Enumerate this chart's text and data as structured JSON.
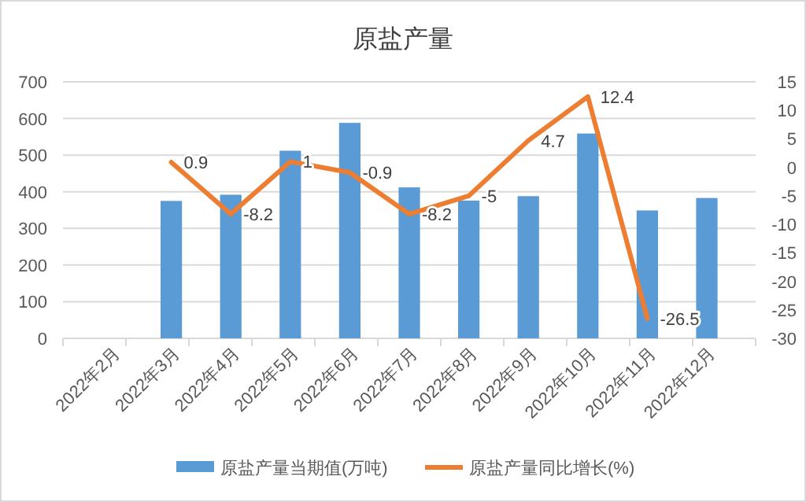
{
  "chart_data": {
    "type": "bar",
    "title": "原盐产量",
    "categories": [
      "2022年2月",
      "2022年3月",
      "2022年4月",
      "2022年5月",
      "2022年6月",
      "2022年7月",
      "2022年8月",
      "2022年9月",
      "2022年10月",
      "2022年11月",
      "2022年12月"
    ],
    "series": [
      {
        "name": "原盐产量当期值(万吨)",
        "color": "#5b9bd5",
        "values": [
          null,
          375,
          392,
          512,
          588,
          412,
          376,
          388,
          559,
          349,
          383
        ]
      },
      {
        "name": "原盐产量同比增长(%)",
        "type": "line",
        "axis": "y2",
        "color": "#ed7d31",
        "values": [
          null,
          0.9,
          -8.2,
          1,
          -0.9,
          -8.2,
          -5,
          4.7,
          12.4,
          -26.5,
          null
        ],
        "value_labels": [
          null,
          "0.9",
          "-8.2",
          "1",
          "-0.9",
          "-8.2",
          "-5",
          "4.7",
          "12.4",
          "-26.5",
          null
        ]
      }
    ],
    "ylim": [
      0,
      700
    ],
    "yticks": [
      0,
      100,
      200,
      300,
      400,
      500,
      600,
      700
    ],
    "y2lim": [
      -30,
      15
    ],
    "y2ticks": [
      -30,
      -25,
      -20,
      -15,
      -10,
      -5,
      0,
      5,
      10,
      15
    ],
    "grid": "y",
    "legend": "bottom",
    "marker": "none",
    "line_style": "solid"
  }
}
